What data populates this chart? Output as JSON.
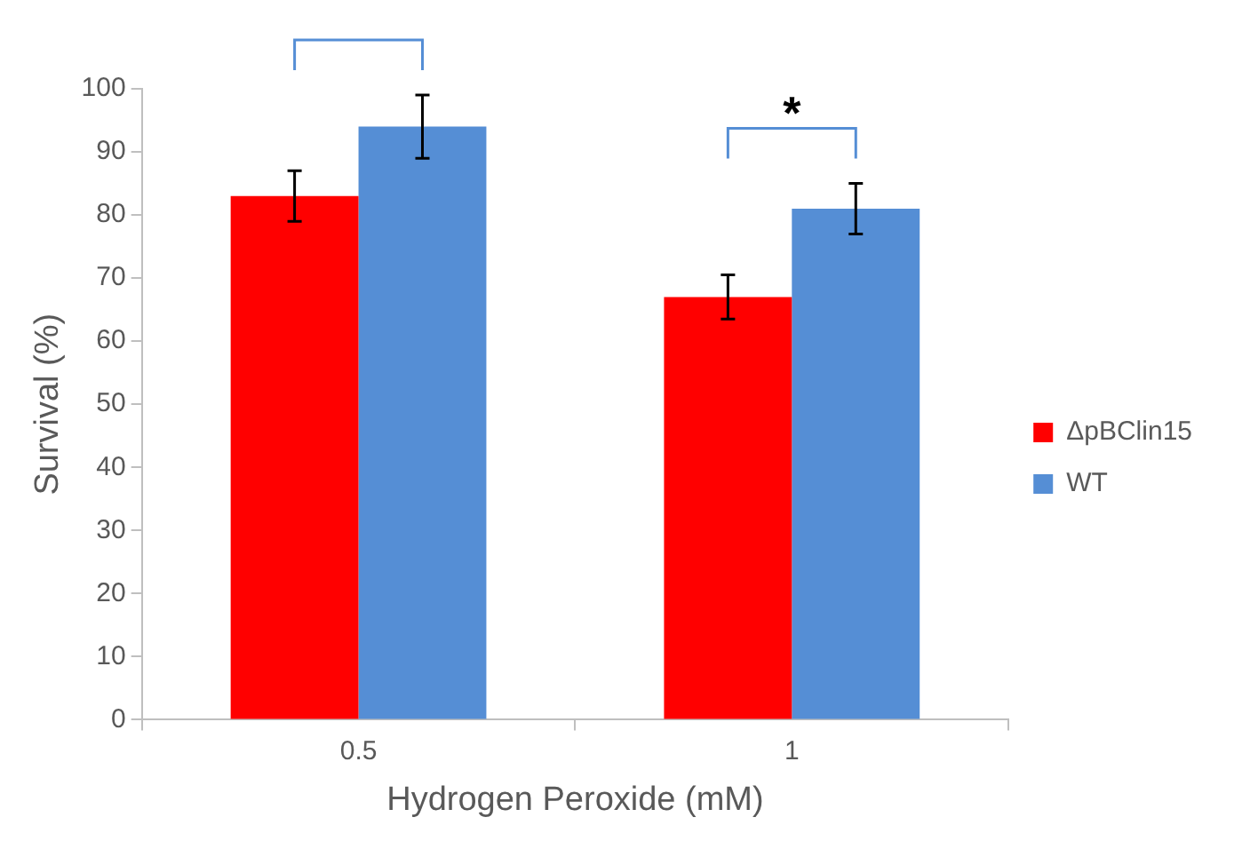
{
  "chart_data": {
    "type": "bar",
    "xlabel": "Hydrogen Peroxide (mM)",
    "ylabel": "Survival (%)",
    "categories": [
      "0.5",
      "1"
    ],
    "series": [
      {
        "name": "ΔpBClin15",
        "color": "#ff0000",
        "values": [
          83,
          67
        ],
        "errors": [
          4,
          3.5
        ]
      },
      {
        "name": "WT",
        "color": "#558ed5",
        "values": [
          94,
          81
        ],
        "errors": [
          5,
          4
        ]
      }
    ],
    "ylim": [
      0,
      100
    ],
    "yticks": [
      0,
      10,
      20,
      30,
      40,
      50,
      60,
      70,
      80,
      90,
      100
    ],
    "legend": "right",
    "annotations": [
      "*"
    ]
  }
}
